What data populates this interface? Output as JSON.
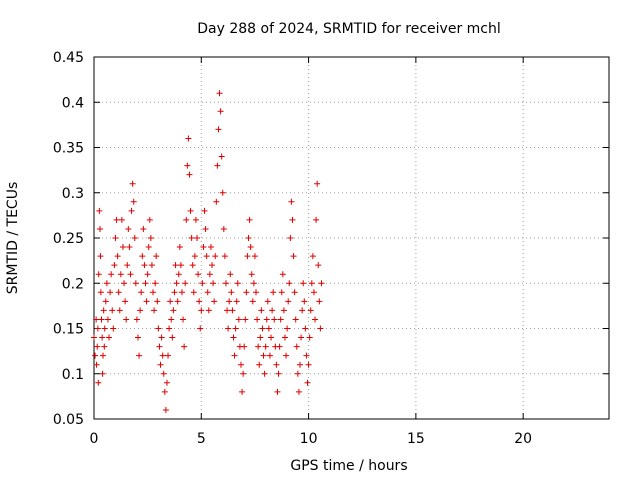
{
  "chart_data": {
    "type": "scatter",
    "title": "Day 288 of 2024, SRMTID for receiver mchl",
    "xlabel": "GPS time / hours",
    "ylabel": "SRMTID / TECUs",
    "xlim": [
      0,
      24
    ],
    "ylim": [
      0.05,
      0.45
    ],
    "xticks": [
      0,
      5,
      10,
      15,
      20
    ],
    "xtick_labels": [
      "0",
      "5",
      "10",
      "15",
      "20"
    ],
    "yticks": [
      0.05,
      0.1,
      0.15,
      0.2,
      0.25,
      0.3,
      0.35,
      0.4,
      0.45
    ],
    "ytick_labels": [
      "0.05",
      "0.1",
      "0.15",
      "0.2",
      "0.25",
      "0.3",
      "0.35",
      "0.4",
      "0.45"
    ],
    "grid": true,
    "marker": "+",
    "color": "#e00000",
    "series": [
      {
        "points": [
          [
            0.0,
            0.14
          ],
          [
            0.05,
            0.12
          ],
          [
            0.1,
            0.16
          ],
          [
            0.12,
            0.11
          ],
          [
            0.15,
            0.13
          ],
          [
            0.18,
            0.15
          ],
          [
            0.2,
            0.09
          ],
          [
            0.22,
            0.21
          ],
          [
            0.25,
            0.28
          ],
          [
            0.28,
            0.26
          ],
          [
            0.3,
            0.23
          ],
          [
            0.32,
            0.19
          ],
          [
            0.35,
            0.16
          ],
          [
            0.38,
            0.14
          ],
          [
            0.4,
            0.1
          ],
          [
            0.42,
            0.12
          ],
          [
            0.45,
            0.17
          ],
          [
            0.48,
            0.13
          ],
          [
            0.5,
            0.15
          ],
          [
            0.55,
            0.18
          ],
          [
            0.6,
            0.2
          ],
          [
            0.65,
            0.16
          ],
          [
            0.7,
            0.14
          ],
          [
            0.75,
            0.19
          ],
          [
            0.8,
            0.21
          ],
          [
            0.85,
            0.17
          ],
          [
            0.9,
            0.15
          ],
          [
            0.95,
            0.22
          ],
          [
            1.0,
            0.25
          ],
          [
            1.05,
            0.27
          ],
          [
            1.1,
            0.23
          ],
          [
            1.15,
            0.19
          ],
          [
            1.2,
            0.17
          ],
          [
            1.25,
            0.21
          ],
          [
            1.3,
            0.27
          ],
          [
            1.35,
            0.24
          ],
          [
            1.4,
            0.2
          ],
          [
            1.45,
            0.18
          ],
          [
            1.5,
            0.16
          ],
          [
            1.55,
            0.22
          ],
          [
            1.6,
            0.26
          ],
          [
            1.65,
            0.24
          ],
          [
            1.7,
            0.21
          ],
          [
            1.75,
            0.28
          ],
          [
            1.8,
            0.31
          ],
          [
            1.85,
            0.29
          ],
          [
            1.9,
            0.25
          ],
          [
            1.95,
            0.2
          ],
          [
            2.0,
            0.16
          ],
          [
            2.05,
            0.14
          ],
          [
            2.1,
            0.12
          ],
          [
            2.15,
            0.17
          ],
          [
            2.2,
            0.19
          ],
          [
            2.25,
            0.23
          ],
          [
            2.3,
            0.26
          ],
          [
            2.35,
            0.22
          ],
          [
            2.4,
            0.2
          ],
          [
            2.45,
            0.18
          ],
          [
            2.5,
            0.21
          ],
          [
            2.55,
            0.24
          ],
          [
            2.6,
            0.27
          ],
          [
            2.65,
            0.25
          ],
          [
            2.7,
            0.22
          ],
          [
            2.75,
            0.19
          ],
          [
            2.8,
            0.17
          ],
          [
            2.85,
            0.2
          ],
          [
            2.9,
            0.23
          ],
          [
            2.95,
            0.18
          ],
          [
            3.0,
            0.15
          ],
          [
            3.05,
            0.13
          ],
          [
            3.1,
            0.11
          ],
          [
            3.15,
            0.14
          ],
          [
            3.2,
            0.12
          ],
          [
            3.25,
            0.1
          ],
          [
            3.3,
            0.08
          ],
          [
            3.35,
            0.06
          ],
          [
            3.4,
            0.09
          ],
          [
            3.45,
            0.12
          ],
          [
            3.5,
            0.15
          ],
          [
            3.55,
            0.18
          ],
          [
            3.6,
            0.16
          ],
          [
            3.65,
            0.14
          ],
          [
            3.7,
            0.17
          ],
          [
            3.75,
            0.19
          ],
          [
            3.8,
            0.22
          ],
          [
            3.85,
            0.2
          ],
          [
            3.9,
            0.18
          ],
          [
            3.95,
            0.21
          ],
          [
            4.0,
            0.24
          ],
          [
            4.05,
            0.22
          ],
          [
            4.1,
            0.19
          ],
          [
            4.15,
            0.16
          ],
          [
            4.2,
            0.13
          ],
          [
            4.25,
            0.2
          ],
          [
            4.3,
            0.27
          ],
          [
            4.35,
            0.33
          ],
          [
            4.4,
            0.36
          ],
          [
            4.45,
            0.32
          ],
          [
            4.5,
            0.28
          ],
          [
            4.55,
            0.25
          ],
          [
            4.6,
            0.22
          ],
          [
            4.65,
            0.19
          ],
          [
            4.7,
            0.23
          ],
          [
            4.75,
            0.27
          ],
          [
            4.8,
            0.25
          ],
          [
            4.85,
            0.21
          ],
          [
            4.9,
            0.18
          ],
          [
            4.95,
            0.15
          ],
          [
            5.0,
            0.17
          ],
          [
            5.05,
            0.2
          ],
          [
            5.1,
            0.24
          ],
          [
            5.15,
            0.28
          ],
          [
            5.2,
            0.26
          ],
          [
            5.25,
            0.23
          ],
          [
            5.3,
            0.19
          ],
          [
            5.35,
            0.17
          ],
          [
            5.4,
            0.21
          ],
          [
            5.45,
            0.24
          ],
          [
            5.5,
            0.22
          ],
          [
            5.55,
            0.2
          ],
          [
            5.6,
            0.18
          ],
          [
            5.65,
            0.23
          ],
          [
            5.7,
            0.29
          ],
          [
            5.75,
            0.33
          ],
          [
            5.8,
            0.37
          ],
          [
            5.85,
            0.41
          ],
          [
            5.9,
            0.39
          ],
          [
            5.95,
            0.34
          ],
          [
            6.0,
            0.3
          ],
          [
            6.05,
            0.26
          ],
          [
            6.1,
            0.23
          ],
          [
            6.15,
            0.2
          ],
          [
            6.2,
            0.17
          ],
          [
            6.25,
            0.15
          ],
          [
            6.3,
            0.18
          ],
          [
            6.35,
            0.21
          ],
          [
            6.4,
            0.19
          ],
          [
            6.45,
            0.17
          ],
          [
            6.5,
            0.14
          ],
          [
            6.55,
            0.12
          ],
          [
            6.6,
            0.15
          ],
          [
            6.65,
            0.18
          ],
          [
            6.7,
            0.2
          ],
          [
            6.75,
            0.16
          ],
          [
            6.8,
            0.13
          ],
          [
            6.85,
            0.11
          ],
          [
            6.9,
            0.08
          ],
          [
            6.95,
            0.1
          ],
          [
            7.0,
            0.13
          ],
          [
            7.05,
            0.16
          ],
          [
            7.1,
            0.19
          ],
          [
            7.15,
            0.23
          ],
          [
            7.2,
            0.25
          ],
          [
            7.25,
            0.27
          ],
          [
            7.3,
            0.24
          ],
          [
            7.35,
            0.21
          ],
          [
            7.4,
            0.18
          ],
          [
            7.45,
            0.2
          ],
          [
            7.5,
            0.23
          ],
          [
            7.55,
            0.19
          ],
          [
            7.6,
            0.16
          ],
          [
            7.65,
            0.13
          ],
          [
            7.7,
            0.11
          ],
          [
            7.75,
            0.14
          ],
          [
            7.8,
            0.17
          ],
          [
            7.85,
            0.15
          ],
          [
            7.9,
            0.12
          ],
          [
            7.95,
            0.1
          ],
          [
            8.0,
            0.13
          ],
          [
            8.05,
            0.16
          ],
          [
            8.1,
            0.18
          ],
          [
            8.15,
            0.15
          ],
          [
            8.2,
            0.12
          ],
          [
            8.25,
            0.14
          ],
          [
            8.3,
            0.17
          ],
          [
            8.35,
            0.19
          ],
          [
            8.4,
            0.16
          ],
          [
            8.45,
            0.13
          ],
          [
            8.5,
            0.11
          ],
          [
            8.55,
            0.08
          ],
          [
            8.6,
            0.1
          ],
          [
            8.65,
            0.13
          ],
          [
            8.7,
            0.16
          ],
          [
            8.75,
            0.19
          ],
          [
            8.8,
            0.21
          ],
          [
            8.85,
            0.17
          ],
          [
            8.9,
            0.14
          ],
          [
            8.95,
            0.12
          ],
          [
            9.0,
            0.15
          ],
          [
            9.05,
            0.18
          ],
          [
            9.1,
            0.2
          ],
          [
            9.15,
            0.25
          ],
          [
            9.2,
            0.29
          ],
          [
            9.25,
            0.27
          ],
          [
            9.3,
            0.23
          ],
          [
            9.35,
            0.19
          ],
          [
            9.4,
            0.16
          ],
          [
            9.45,
            0.13
          ],
          [
            9.5,
            0.1
          ],
          [
            9.55,
            0.08
          ],
          [
            9.6,
            0.11
          ],
          [
            9.65,
            0.14
          ],
          [
            9.7,
            0.17
          ],
          [
            9.75,
            0.2
          ],
          [
            9.8,
            0.18
          ],
          [
            9.85,
            0.15
          ],
          [
            9.9,
            0.12
          ],
          [
            9.95,
            0.09
          ],
          [
            10.0,
            0.11
          ],
          [
            10.05,
            0.14
          ],
          [
            10.1,
            0.17
          ],
          [
            10.15,
            0.2
          ],
          [
            10.2,
            0.23
          ],
          [
            10.25,
            0.19
          ],
          [
            10.3,
            0.16
          ],
          [
            10.35,
            0.27
          ],
          [
            10.4,
            0.31
          ],
          [
            10.45,
            0.22
          ],
          [
            10.5,
            0.18
          ],
          [
            10.55,
            0.15
          ],
          [
            10.6,
            0.2
          ]
        ]
      }
    ]
  }
}
